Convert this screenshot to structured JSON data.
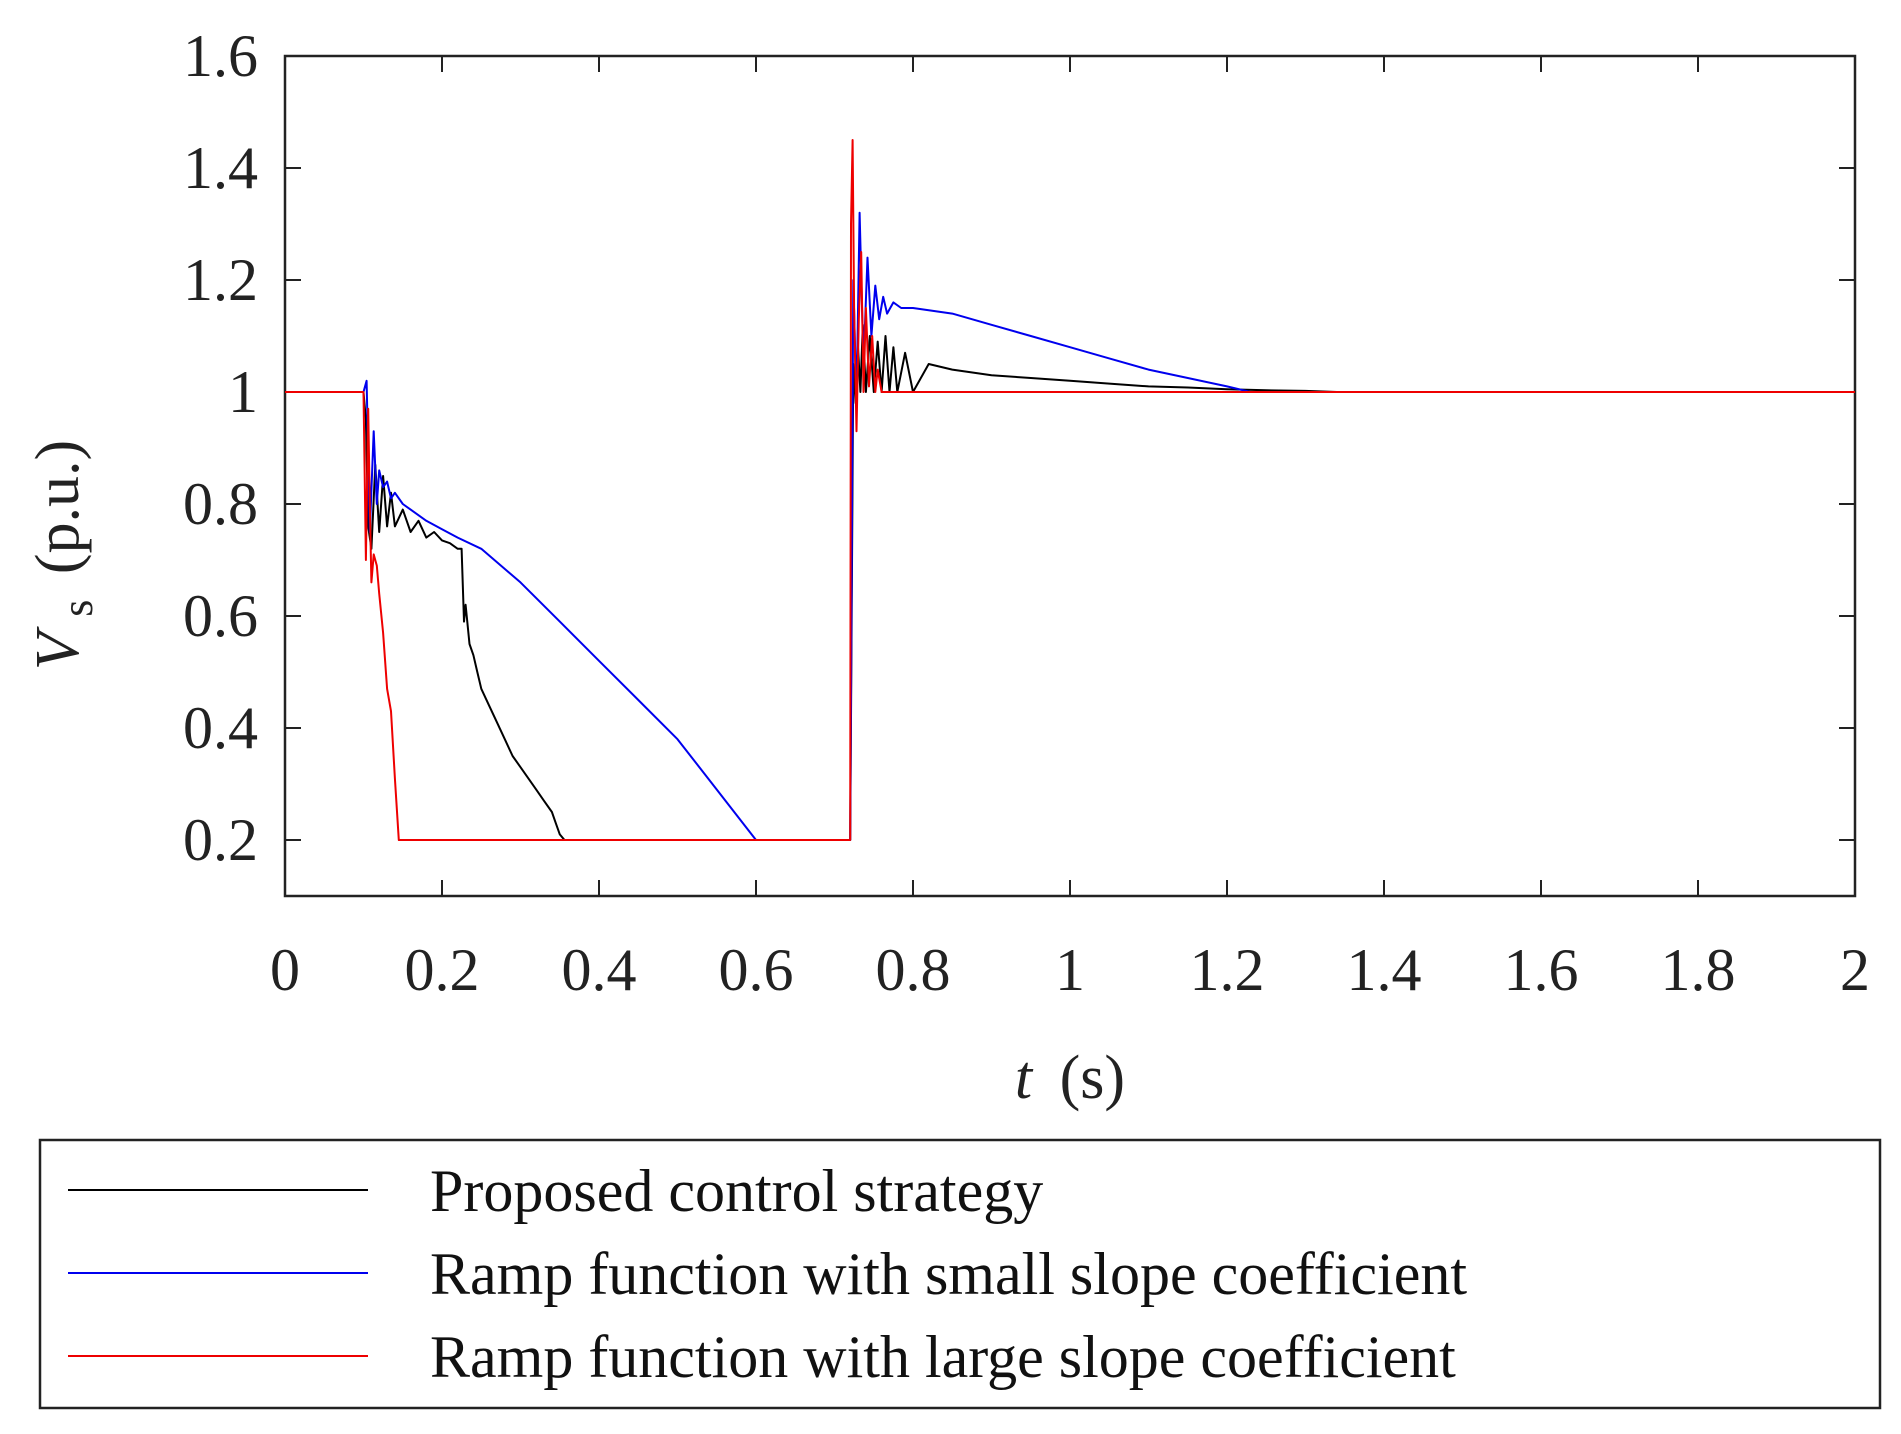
{
  "chart_data": {
    "type": "line",
    "title": "",
    "xlabel": {
      "var": "t",
      "unit": "(s)"
    },
    "ylabel": {
      "var": "V",
      "sub": "s",
      "unit": "(p.u.)"
    },
    "xlim": [
      0,
      2
    ],
    "ylim": [
      0.1,
      1.6
    ],
    "xticks": [
      0,
      0.2,
      0.4,
      0.6,
      0.8,
      1,
      1.2,
      1.4,
      1.6,
      1.8,
      2
    ],
    "xtick_labels": [
      "0",
      "0.2",
      "0.4",
      "0.6",
      "0.8",
      "1",
      "1.2",
      "1.4",
      "1.6",
      "1.8",
      "2"
    ],
    "yticks": [
      0.2,
      0.4,
      0.6,
      0.8,
      1,
      1.2,
      1.4,
      1.6
    ],
    "ytick_labels": [
      "0.2",
      "0.4",
      "0.6",
      "0.8",
      "1",
      "1.2",
      "1.4",
      "1.6"
    ],
    "grid": false,
    "legend_position": "bottom",
    "series": [
      {
        "name": "Proposed control strategy",
        "color": "#000000",
        "x": [
          0,
          0.1,
          0.103,
          0.106,
          0.11,
          0.115,
          0.12,
          0.125,
          0.13,
          0.135,
          0.14,
          0.15,
          0.16,
          0.17,
          0.18,
          0.19,
          0.2,
          0.21,
          0.22,
          0.225,
          0.228,
          0.23,
          0.235,
          0.24,
          0.245,
          0.25,
          0.26,
          0.27,
          0.28,
          0.29,
          0.3,
          0.31,
          0.32,
          0.33,
          0.34,
          0.345,
          0.35,
          0.356,
          0.36,
          0.5,
          0.6,
          0.72,
          0.724,
          0.727,
          0.73,
          0.733,
          0.736,
          0.74,
          0.745,
          0.75,
          0.755,
          0.76,
          0.765,
          0.77,
          0.775,
          0.78,
          0.79,
          0.8,
          0.82,
          0.85,
          0.9,
          0.95,
          1.0,
          1.05,
          1.1,
          1.15,
          1.2,
          1.25,
          1.3,
          1.34,
          1.4,
          1.6,
          1.8,
          2.0
        ],
        "y": [
          1.0,
          1.0,
          0.95,
          0.76,
          0.72,
          0.87,
          0.75,
          0.85,
          0.76,
          0.82,
          0.76,
          0.79,
          0.75,
          0.77,
          0.74,
          0.75,
          0.735,
          0.73,
          0.72,
          0.72,
          0.59,
          0.62,
          0.55,
          0.53,
          0.5,
          0.47,
          0.44,
          0.41,
          0.38,
          0.35,
          0.33,
          0.31,
          0.29,
          0.27,
          0.25,
          0.23,
          0.21,
          0.2,
          0.2,
          0.2,
          0.2,
          0.2,
          1.05,
          0.98,
          1.08,
          1.0,
          1.12,
          1.0,
          1.1,
          1.0,
          1.09,
          1.0,
          1.1,
          1.0,
          1.08,
          1.0,
          1.07,
          1.0,
          1.05,
          1.04,
          1.03,
          1.025,
          1.02,
          1.015,
          1.01,
          1.008,
          1.005,
          1.003,
          1.002,
          1.0,
          1.0,
          1.0,
          1.0,
          1.0
        ]
      },
      {
        "name": "Ramp function with small slope coefficient",
        "color": "#0000ee",
        "x": [
          0,
          0.1,
          0.104,
          0.108,
          0.113,
          0.117,
          0.12,
          0.125,
          0.13,
          0.135,
          0.14,
          0.15,
          0.16,
          0.18,
          0.2,
          0.22,
          0.25,
          0.3,
          0.35,
          0.4,
          0.45,
          0.5,
          0.55,
          0.6,
          0.65,
          0.72,
          0.724,
          0.728,
          0.732,
          0.737,
          0.742,
          0.747,
          0.752,
          0.757,
          0.762,
          0.767,
          0.775,
          0.785,
          0.8,
          0.85,
          0.9,
          0.95,
          1.0,
          1.05,
          1.1,
          1.15,
          1.2,
          1.23,
          1.3,
          1.6,
          2.0
        ],
        "y": [
          1.0,
          1.0,
          1.02,
          0.75,
          0.93,
          0.8,
          0.86,
          0.83,
          0.84,
          0.81,
          0.82,
          0.8,
          0.79,
          0.77,
          0.755,
          0.74,
          0.72,
          0.66,
          0.59,
          0.52,
          0.45,
          0.38,
          0.29,
          0.2,
          0.2,
          0.2,
          1.2,
          0.98,
          1.32,
          1.05,
          1.24,
          1.1,
          1.19,
          1.13,
          1.17,
          1.14,
          1.16,
          1.15,
          1.15,
          1.14,
          1.12,
          1.1,
          1.08,
          1.06,
          1.04,
          1.025,
          1.01,
          1.0,
          1.0,
          1.0,
          1.0
        ]
      },
      {
        "name": "Ramp function with large slope coefficient",
        "color": "#ee0000",
        "x": [
          0,
          0.1,
          0.103,
          0.106,
          0.108,
          0.11,
          0.113,
          0.117,
          0.12,
          0.125,
          0.13,
          0.135,
          0.14,
          0.145,
          0.15,
          0.155,
          0.5,
          0.6,
          0.72,
          0.721,
          0.723,
          0.725,
          0.728,
          0.731,
          0.734,
          0.737,
          0.74,
          0.744,
          0.748,
          0.752,
          0.755,
          0.76,
          0.765,
          0.8,
          1.0,
          1.5,
          2.0
        ],
        "y": [
          1.0,
          1.0,
          0.7,
          0.97,
          0.8,
          0.66,
          0.71,
          0.69,
          0.64,
          0.57,
          0.47,
          0.43,
          0.31,
          0.2,
          0.2,
          0.2,
          0.2,
          0.2,
          0.2,
          1.3,
          1.45,
          1.15,
          0.93,
          1.13,
          1.25,
          1.0,
          1.15,
          1.01,
          1.1,
          1.0,
          1.04,
          1.0,
          1.0,
          1.0,
          1.0,
          1.0,
          1.0
        ]
      }
    ]
  }
}
